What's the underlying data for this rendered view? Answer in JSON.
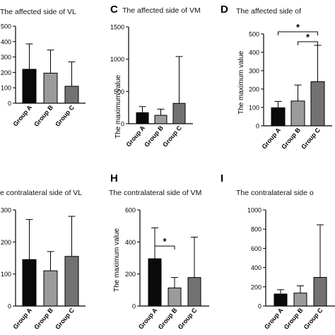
{
  "chart_data": [
    {
      "panel": "",
      "type": "bar",
      "title": "The affected side of VL",
      "ylabel": "",
      "categories": [
        "Group A",
        "Group B",
        "Group C"
      ],
      "values": [
        220,
        195,
        110
      ],
      "error_upper": [
        385,
        345,
        268
      ],
      "ylim": [
        0,
        500
      ],
      "yticks": [
        "0",
        "100",
        "200",
        "300",
        "400",
        "500"
      ],
      "colors": [
        "#0a0a0a",
        "#9b9b9b",
        "#727272"
      ],
      "significance": []
    },
    {
      "panel": "C",
      "type": "bar",
      "title": "The affected side of VM",
      "ylabel": "The maximum value",
      "categories": [
        "Group A",
        "Group B",
        "Group C"
      ],
      "values": [
        170,
        130,
        315
      ],
      "error_upper": [
        265,
        225,
        1040
      ],
      "ylim": [
        0,
        1500
      ],
      "yticks": [
        "0",
        "500",
        "1000",
        "1500"
      ],
      "colors": [
        "#0a0a0a",
        "#9b9b9b",
        "#727272"
      ],
      "significance": []
    },
    {
      "panel": "D",
      "type": "bar",
      "title": "The affected side of",
      "ylabel": "The maximum  value",
      "categories": [
        "Group A",
        "Group B",
        "Group C"
      ],
      "values": [
        98,
        135,
        240
      ],
      "error_upper": [
        133,
        222,
        438
      ],
      "ylim": [
        0,
        500
      ],
      "yticks": [
        "0",
        "100",
        "200",
        "300",
        "400",
        "500"
      ],
      "colors": [
        "#0a0a0a",
        "#9b9b9b",
        "#727272"
      ],
      "significance": [
        {
          "from": 0,
          "to": 2,
          "label": "*"
        },
        {
          "from": 1,
          "to": 2,
          "label": "*"
        }
      ]
    },
    {
      "panel": "",
      "type": "bar",
      "title": "e contralateral side of VL",
      "ylabel": "",
      "categories": [
        "Group A",
        "Group B",
        "Group C"
      ],
      "values": [
        145,
        110,
        155
      ],
      "error_upper": [
        270,
        170,
        280
      ],
      "ylim": [
        0,
        300
      ],
      "yticks": [
        "0",
        "100",
        "200",
        "300"
      ],
      "colors": [
        "#0a0a0a",
        "#9b9b9b",
        "#727272"
      ],
      "significance": []
    },
    {
      "panel": "H",
      "type": "bar",
      "title": "The contralateral side of VM",
      "ylabel": "The maximum  value",
      "categories": [
        "Group A",
        "Group B",
        "Group C"
      ],
      "values": [
        295,
        113,
        178
      ],
      "error_upper": [
        488,
        178,
        430
      ],
      "ylim": [
        0,
        600
      ],
      "yticks": [
        "0",
        "200",
        "400",
        "600"
      ],
      "colors": [
        "#0a0a0a",
        "#9b9b9b",
        "#727272"
      ],
      "significance": [
        {
          "from": 0,
          "to": 1,
          "label": "*"
        }
      ]
    },
    {
      "panel": "I",
      "type": "bar",
      "title": "The contralateral side o",
      "ylabel": "",
      "categories": [
        "Group A",
        "Group B",
        "Group C"
      ],
      "values": [
        125,
        135,
        298
      ],
      "error_upper": [
        170,
        210,
        845
      ],
      "ylim": [
        0,
        1000
      ],
      "yticks": [
        "0",
        "200",
        "400",
        "600",
        "800",
        "1000"
      ],
      "colors": [
        "#0a0a0a",
        "#9b9b9b",
        "#727272"
      ],
      "significance": []
    }
  ]
}
